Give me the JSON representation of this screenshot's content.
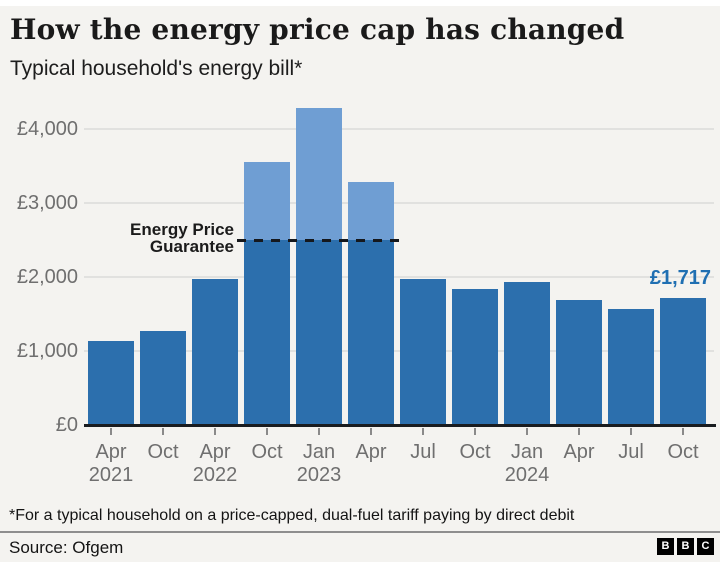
{
  "header": {
    "title": "How the energy price cap has changed",
    "subtitle": "Typical household's energy bill*"
  },
  "chart_data": {
    "type": "bar",
    "title": "How the energy price cap has changed",
    "subtitle": "Typical household's energy bill*",
    "ylim": [
      0,
      4400
    ],
    "grid": true,
    "categories": [
      "Apr 2021",
      "Oct 2021",
      "Apr 2022",
      "Oct 2022",
      "Jan 2023",
      "Apr 2023",
      "Jul 2023",
      "Oct 2023",
      "Jan 2024",
      "Apr 2024",
      "Jul 2024",
      "Oct 2024"
    ],
    "values": [
      1138,
      1277,
      1971,
      3549,
      4279,
      3280,
      1976,
      1834,
      1928,
      1690,
      1568,
      1717
    ],
    "x_ticks": [
      {
        "month": "Apr",
        "year": "2021"
      },
      {
        "month": "Oct",
        "year": ""
      },
      {
        "month": "Apr",
        "year": "2022"
      },
      {
        "month": "Oct",
        "year": ""
      },
      {
        "month": "Jan",
        "year": "2023"
      },
      {
        "month": "Apr",
        "year": ""
      },
      {
        "month": "Jul",
        "year": ""
      },
      {
        "month": "Oct",
        "year": ""
      },
      {
        "month": "Jan",
        "year": "2024"
      },
      {
        "month": "Apr",
        "year": ""
      },
      {
        "month": "Jul",
        "year": ""
      },
      {
        "month": "Oct",
        "year": ""
      }
    ],
    "y_ticks": [
      {
        "label": "£0",
        "value": 0
      },
      {
        "label": "£1,000",
        "value": 1000
      },
      {
        "label": "£2,000",
        "value": 2000
      },
      {
        "label": "£3,000",
        "value": 3000
      },
      {
        "label": "£4,000",
        "value": 4000
      }
    ],
    "annotation": {
      "line1": "Energy Price",
      "line2": "Guarantee",
      "value": 2500,
      "style": "dashed"
    },
    "last_value_label": "£1,717",
    "last_value": 1717,
    "legend": null,
    "colors": {
      "bar": "#2c6fad",
      "bar_above_guarantee": "#6f9ed3",
      "value_label": "#1f6fb2",
      "axis_text": "#6f6f6f",
      "background": "#f4f3f0"
    }
  },
  "footer": {
    "footnote": "*For a typical household on a price-capped, dual-fuel tariff paying by direct debit",
    "source": "Source: Ofgem",
    "logo_letters": [
      "B",
      "B",
      "C"
    ]
  }
}
